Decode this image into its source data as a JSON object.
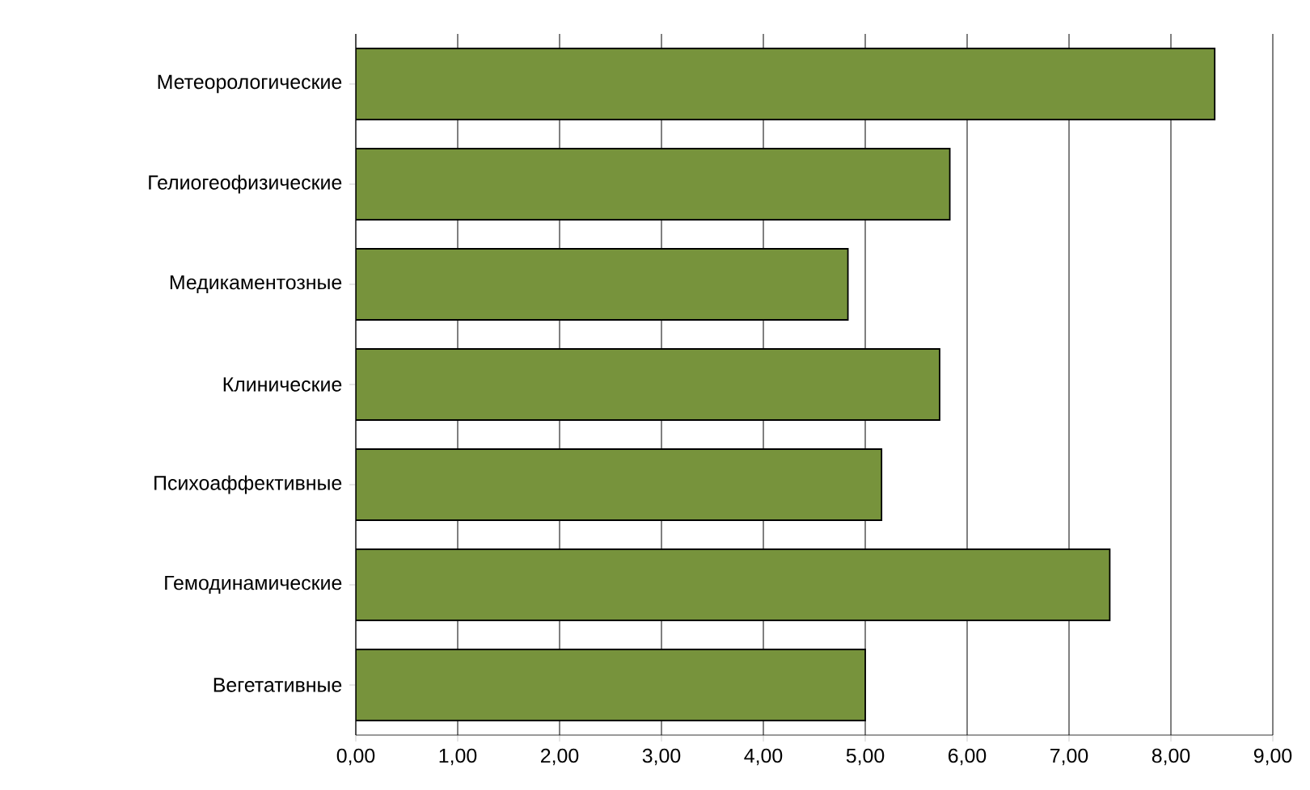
{
  "chart_data": {
    "type": "bar",
    "orientation": "horizontal",
    "categories": [
      "Метеорологические",
      "Гелиогеофизические",
      "Медикаментозные",
      "Клинические",
      "Психоаффективные",
      "Гемодинамические",
      "Вегетативные"
    ],
    "values": [
      8.43,
      5.83,
      4.83,
      5.73,
      5.16,
      7.4,
      5.0
    ],
    "color": "#77933c",
    "xlim": [
      0,
      9
    ],
    "xticks": [
      {
        "value": 0,
        "label": "0,00"
      },
      {
        "value": 1,
        "label": "1,00"
      },
      {
        "value": 2,
        "label": "2,00"
      },
      {
        "value": 3,
        "label": "3,00"
      },
      {
        "value": 4,
        "label": "4,00"
      },
      {
        "value": 5,
        "label": "5,00"
      },
      {
        "value": 6,
        "label": "6,00"
      },
      {
        "value": 7,
        "label": "7,00"
      },
      {
        "value": 8,
        "label": "8,00"
      },
      {
        "value": 9,
        "label": "9,00"
      }
    ],
    "grid": "x"
  }
}
